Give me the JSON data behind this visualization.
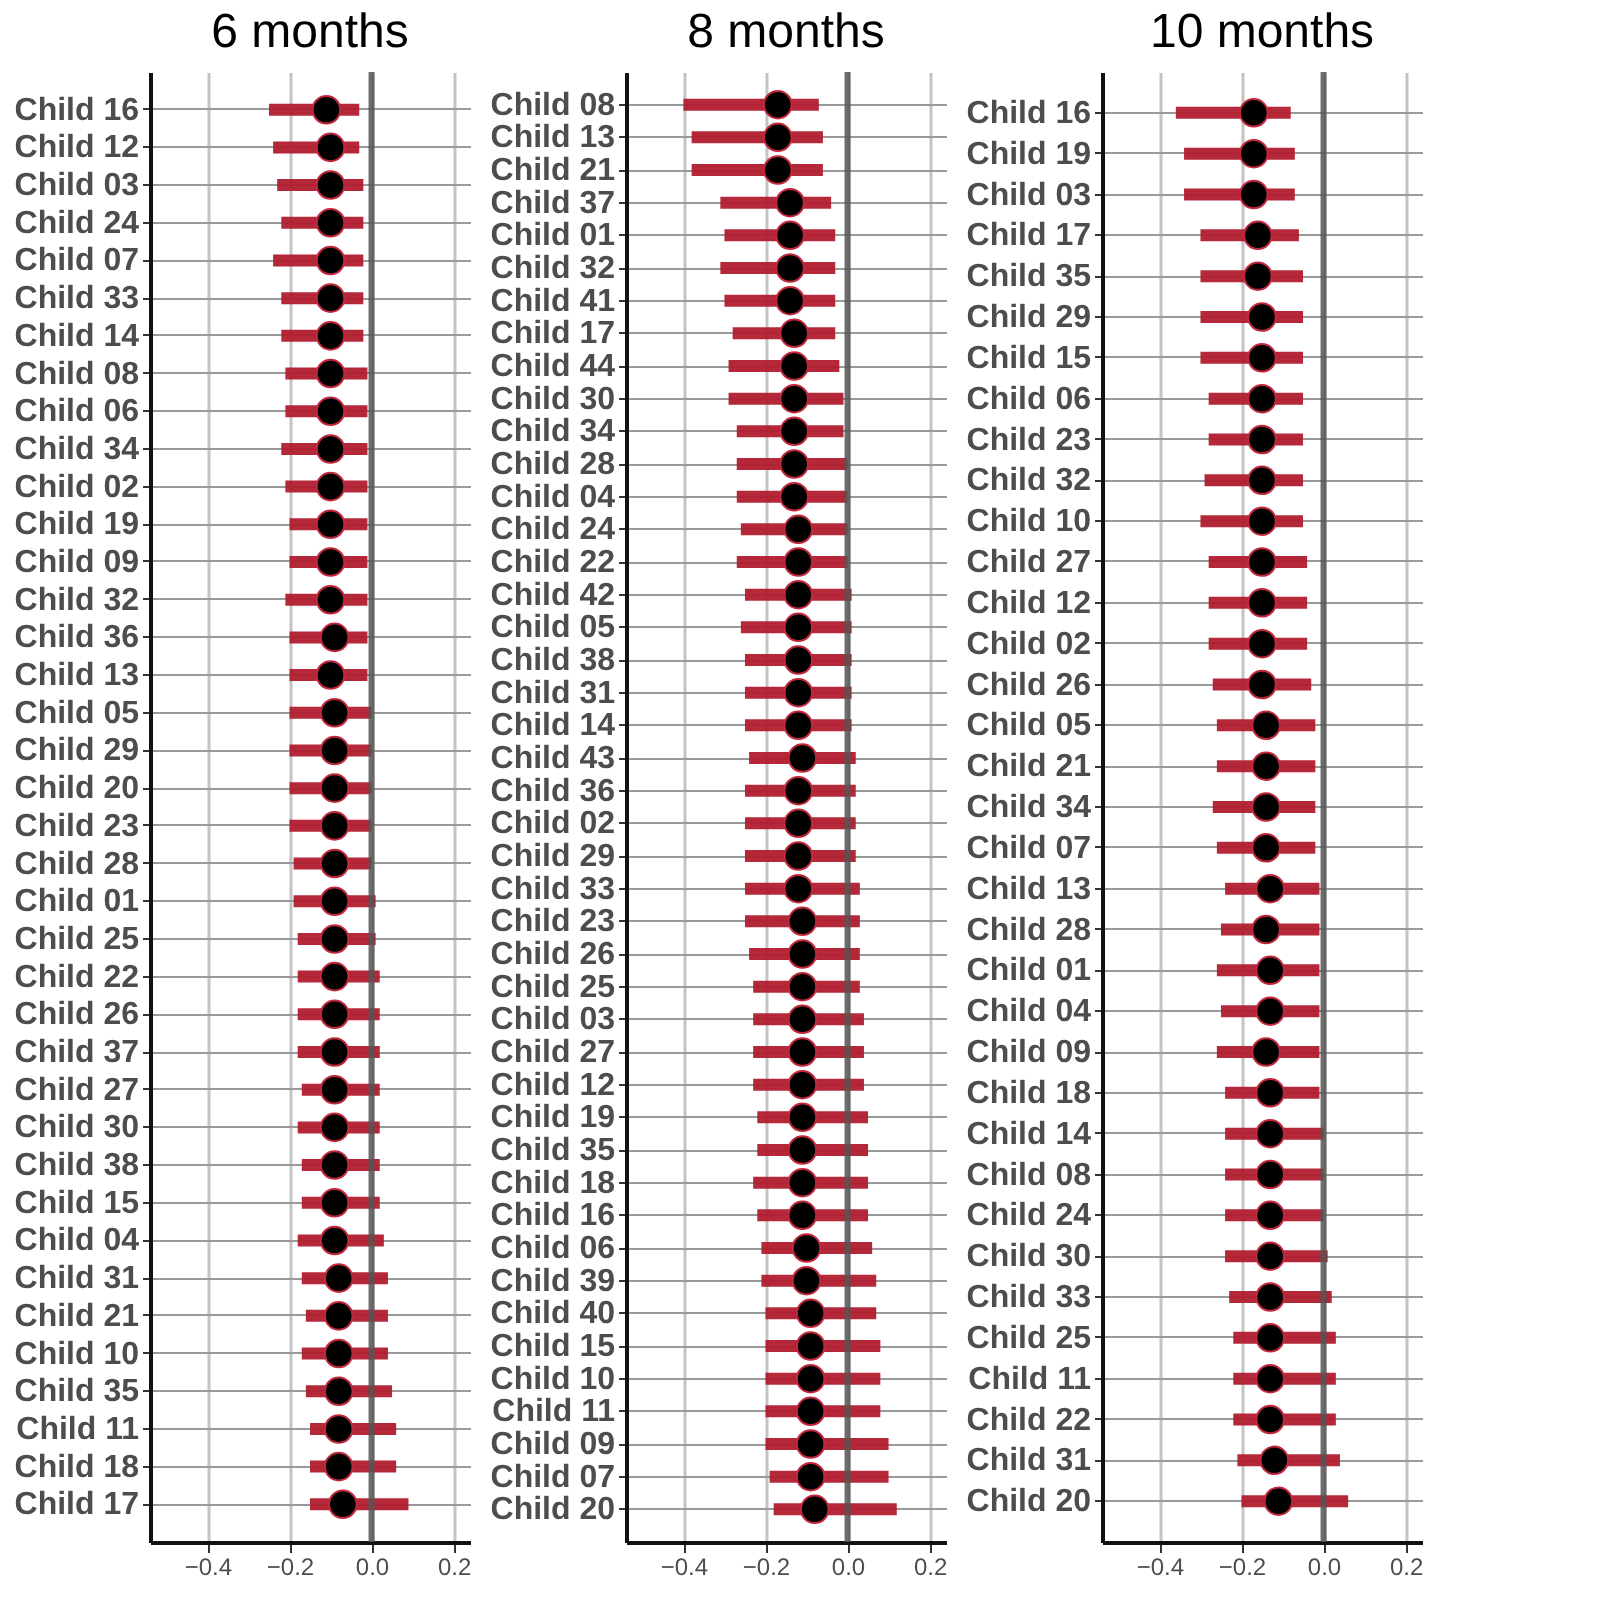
{
  "chart_data": [
    {
      "type": "scatter",
      "title": "6 months",
      "orientation": "horizontal",
      "marker": "circle",
      "grid": true,
      "color": "#000000",
      "categories": [
        "Child 16",
        "Child 12",
        "Child 03",
        "Child 24",
        "Child 07",
        "Child 33",
        "Child 14",
        "Child 08",
        "Child 06",
        "Child 34",
        "Child 02",
        "Child 19",
        "Child 09",
        "Child 32",
        "Child 36",
        "Child 13",
        "Child 05",
        "Child 29",
        "Child 20",
        "Child 23",
        "Child 28",
        "Child 01",
        "Child 25",
        "Child 22",
        "Child 26",
        "Child 37",
        "Child 27",
        "Child 30",
        "Child 38",
        "Child 15",
        "Child 04",
        "Child 31",
        "Child 21",
        "Child 10",
        "Child 35",
        "Child 11",
        "Child 18",
        "Child 17"
      ],
      "values": [
        -0.11,
        -0.1,
        -0.1,
        -0.1,
        -0.1,
        -0.1,
        -0.1,
        -0.1,
        -0.1,
        -0.1,
        -0.1,
        -0.1,
        -0.1,
        -0.1,
        -0.09,
        -0.1,
        -0.09,
        -0.09,
        -0.09,
        -0.09,
        -0.09,
        -0.09,
        -0.09,
        -0.09,
        -0.09,
        -0.09,
        -0.09,
        -0.09,
        -0.09,
        -0.09,
        -0.09,
        -0.08,
        -0.08,
        -0.08,
        -0.08,
        -0.08,
        -0.08,
        -0.07
      ],
      "errors": [
        [
          -0.25,
          -0.03
        ],
        [
          -0.24,
          -0.03
        ],
        [
          -0.23,
          -0.02
        ],
        [
          -0.22,
          -0.02
        ],
        [
          -0.24,
          -0.02
        ],
        [
          -0.22,
          -0.02
        ],
        [
          -0.22,
          -0.02
        ],
        [
          -0.21,
          -0.01
        ],
        [
          -0.21,
          -0.01
        ],
        [
          -0.22,
          -0.01
        ],
        [
          -0.21,
          -0.01
        ],
        [
          -0.2,
          -0.01
        ],
        [
          -0.2,
          -0.01
        ],
        [
          -0.21,
          -0.01
        ],
        [
          -0.2,
          -0.01
        ],
        [
          -0.2,
          -0.01
        ],
        [
          -0.2,
          0.0
        ],
        [
          -0.2,
          0.0
        ],
        [
          -0.2,
          0.0
        ],
        [
          -0.2,
          0.0
        ],
        [
          -0.19,
          0.0
        ],
        [
          -0.19,
          0.01
        ],
        [
          -0.18,
          0.01
        ],
        [
          -0.18,
          0.02
        ],
        [
          -0.18,
          0.02
        ],
        [
          -0.18,
          0.02
        ],
        [
          -0.17,
          0.02
        ],
        [
          -0.18,
          0.02
        ],
        [
          -0.17,
          0.02
        ],
        [
          -0.17,
          0.02
        ],
        [
          -0.18,
          0.03
        ],
        [
          -0.17,
          0.04
        ],
        [
          -0.16,
          0.04
        ],
        [
          -0.17,
          0.04
        ],
        [
          -0.16,
          0.05
        ],
        [
          -0.15,
          0.06
        ],
        [
          -0.15,
          0.06
        ],
        [
          -0.15,
          0.09
        ]
      ],
      "xlim": [
        -0.54,
        0.24
      ],
      "xticks": [
        {
          "value": -0.4,
          "label": "−0.4"
        },
        {
          "value": -0.2,
          "label": "−0.2"
        },
        {
          "value": 0,
          "label": "0.0"
        },
        {
          "value": 0.2,
          "label": "0.2"
        }
      ],
      "ref_lines": [
        {
          "axis": "x",
          "value": 0,
          "color": "#555555"
        }
      ]
    },
    {
      "type": "scatter",
      "title": "8 months",
      "orientation": "horizontal",
      "marker": "circle",
      "grid": true,
      "color": "#000000",
      "categories": [
        "Child 08",
        "Child 13",
        "Child 21",
        "Child 37",
        "Child 01",
        "Child 32",
        "Child 41",
        "Child 17",
        "Child 44",
        "Child 30",
        "Child 34",
        "Child 28",
        "Child 04",
        "Child 24",
        "Child 22",
        "Child 42",
        "Child 05",
        "Child 38",
        "Child 31",
        "Child 14",
        "Child 43",
        "Child 36",
        "Child 02",
        "Child 29",
        "Child 33",
        "Child 23",
        "Child 26",
        "Child 25",
        "Child 03",
        "Child 27",
        "Child 12",
        "Child 19",
        "Child 35",
        "Child 18",
        "Child 16",
        "Child 06",
        "Child 39",
        "Child 40",
        "Child 15",
        "Child 10",
        "Child 11",
        "Child 09",
        "Child 07",
        "Child 20"
      ],
      "values": [
        -0.17,
        -0.17,
        -0.17,
        -0.14,
        -0.14,
        -0.14,
        -0.14,
        -0.13,
        -0.13,
        -0.13,
        -0.13,
        -0.13,
        -0.13,
        -0.12,
        -0.12,
        -0.12,
        -0.12,
        -0.12,
        -0.12,
        -0.12,
        -0.11,
        -0.12,
        -0.12,
        -0.12,
        -0.12,
        -0.11,
        -0.11,
        -0.11,
        -0.11,
        -0.11,
        -0.11,
        -0.11,
        -0.11,
        -0.11,
        -0.11,
        -0.1,
        -0.1,
        -0.09,
        -0.09,
        -0.09,
        -0.09,
        -0.09,
        -0.09,
        -0.08
      ],
      "errors": [
        [
          -0.4,
          -0.07
        ],
        [
          -0.38,
          -0.06
        ],
        [
          -0.38,
          -0.06
        ],
        [
          -0.31,
          -0.04
        ],
        [
          -0.3,
          -0.03
        ],
        [
          -0.31,
          -0.03
        ],
        [
          -0.3,
          -0.03
        ],
        [
          -0.28,
          -0.03
        ],
        [
          -0.29,
          -0.02
        ],
        [
          -0.29,
          -0.01
        ],
        [
          -0.27,
          -0.01
        ],
        [
          -0.27,
          0.0
        ],
        [
          -0.27,
          0.0
        ],
        [
          -0.26,
          0.0
        ],
        [
          -0.27,
          0.0
        ],
        [
          -0.25,
          0.01
        ],
        [
          -0.26,
          0.01
        ],
        [
          -0.25,
          0.01
        ],
        [
          -0.25,
          0.01
        ],
        [
          -0.25,
          0.01
        ],
        [
          -0.24,
          0.02
        ],
        [
          -0.25,
          0.02
        ],
        [
          -0.25,
          0.02
        ],
        [
          -0.25,
          0.02
        ],
        [
          -0.25,
          0.03
        ],
        [
          -0.25,
          0.03
        ],
        [
          -0.24,
          0.03
        ],
        [
          -0.23,
          0.03
        ],
        [
          -0.23,
          0.04
        ],
        [
          -0.23,
          0.04
        ],
        [
          -0.23,
          0.04
        ],
        [
          -0.22,
          0.05
        ],
        [
          -0.22,
          0.05
        ],
        [
          -0.23,
          0.05
        ],
        [
          -0.22,
          0.05
        ],
        [
          -0.21,
          0.06
        ],
        [
          -0.21,
          0.07
        ],
        [
          -0.2,
          0.07
        ],
        [
          -0.2,
          0.08
        ],
        [
          -0.2,
          0.08
        ],
        [
          -0.2,
          0.08
        ],
        [
          -0.2,
          0.1
        ],
        [
          -0.19,
          0.1
        ],
        [
          -0.18,
          0.12
        ]
      ],
      "xlim": [
        -0.54,
        0.24
      ],
      "xticks": [
        {
          "value": -0.4,
          "label": "−0.4"
        },
        {
          "value": -0.2,
          "label": "−0.2"
        },
        {
          "value": 0,
          "label": "0.0"
        },
        {
          "value": 0.2,
          "label": "0.2"
        }
      ],
      "ref_lines": [
        {
          "axis": "x",
          "value": 0,
          "color": "#555555"
        }
      ]
    },
    {
      "type": "scatter",
      "title": "10 months",
      "orientation": "horizontal",
      "marker": "circle",
      "grid": true,
      "color": "#000000",
      "categories": [
        "Child 16",
        "Child 19",
        "Child 03",
        "Child 17",
        "Child 35",
        "Child 29",
        "Child 15",
        "Child 06",
        "Child 23",
        "Child 32",
        "Child 10",
        "Child 27",
        "Child 12",
        "Child 02",
        "Child 26",
        "Child 05",
        "Child 21",
        "Child 34",
        "Child 07",
        "Child 13",
        "Child 28",
        "Child 01",
        "Child 04",
        "Child 09",
        "Child 18",
        "Child 14",
        "Child 08",
        "Child 24",
        "Child 30",
        "Child 33",
        "Child 25",
        "Child 11",
        "Child 22",
        "Child 31",
        "Child 20"
      ],
      "values": [
        -0.17,
        -0.17,
        -0.17,
        -0.16,
        -0.16,
        -0.15,
        -0.15,
        -0.15,
        -0.15,
        -0.15,
        -0.15,
        -0.15,
        -0.15,
        -0.15,
        -0.15,
        -0.14,
        -0.14,
        -0.14,
        -0.14,
        -0.13,
        -0.14,
        -0.13,
        -0.13,
        -0.14,
        -0.13,
        -0.13,
        -0.13,
        -0.13,
        -0.13,
        -0.13,
        -0.13,
        -0.13,
        -0.13,
        -0.12,
        -0.11
      ],
      "errors": [
        [
          -0.36,
          -0.08
        ],
        [
          -0.34,
          -0.07
        ],
        [
          -0.34,
          -0.07
        ],
        [
          -0.3,
          -0.06
        ],
        [
          -0.3,
          -0.05
        ],
        [
          -0.3,
          -0.05
        ],
        [
          -0.3,
          -0.05
        ],
        [
          -0.28,
          -0.05
        ],
        [
          -0.28,
          -0.05
        ],
        [
          -0.29,
          -0.05
        ],
        [
          -0.3,
          -0.05
        ],
        [
          -0.28,
          -0.04
        ],
        [
          -0.28,
          -0.04
        ],
        [
          -0.28,
          -0.04
        ],
        [
          -0.27,
          -0.03
        ],
        [
          -0.26,
          -0.02
        ],
        [
          -0.26,
          -0.02
        ],
        [
          -0.27,
          -0.02
        ],
        [
          -0.26,
          -0.02
        ],
        [
          -0.24,
          -0.01
        ],
        [
          -0.25,
          -0.01
        ],
        [
          -0.26,
          -0.01
        ],
        [
          -0.25,
          -0.01
        ],
        [
          -0.26,
          -0.01
        ],
        [
          -0.24,
          -0.01
        ],
        [
          -0.24,
          0.0
        ],
        [
          -0.24,
          0.0
        ],
        [
          -0.24,
          0.0
        ],
        [
          -0.24,
          0.01
        ],
        [
          -0.23,
          0.02
        ],
        [
          -0.22,
          0.03
        ],
        [
          -0.22,
          0.03
        ],
        [
          -0.22,
          0.03
        ],
        [
          -0.21,
          0.04
        ],
        [
          -0.2,
          0.06
        ]
      ],
      "xlim": [
        -0.54,
        0.24
      ],
      "xticks": [
        {
          "value": -0.4,
          "label": "−0.4"
        },
        {
          "value": -0.2,
          "label": "−0.2"
        },
        {
          "value": 0,
          "label": "0.0"
        },
        {
          "value": 0.2,
          "label": "0.2"
        }
      ],
      "ref_lines": [
        {
          "axis": "x",
          "value": 0,
          "color": "#555555"
        }
      ]
    }
  ]
}
